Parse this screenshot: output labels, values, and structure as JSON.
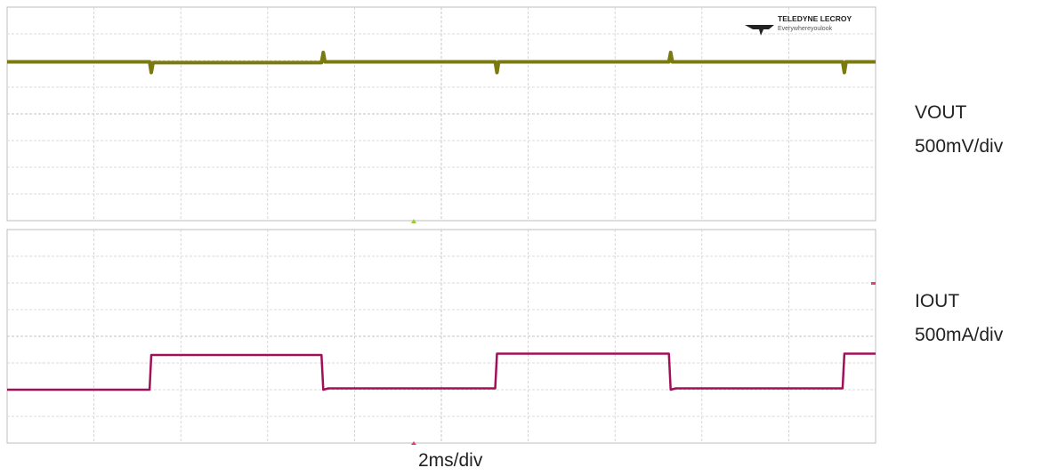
{
  "chart_data": [
    {
      "type": "line",
      "title": "",
      "series": [
        {
          "name": "VOUT",
          "color": "#7a7a10",
          "x_div": [
            0,
            1.64,
            1.66,
            1.68,
            3.62,
            3.64,
            3.66,
            3.7,
            5.62,
            5.64,
            5.66,
            5.68,
            7.62,
            7.64,
            7.66,
            7.7,
            9.62,
            9.64,
            9.66,
            10.0
          ],
          "y_div": [
            5.95,
            5.95,
            5.55,
            5.92,
            5.92,
            6.3,
            5.95,
            5.95,
            5.95,
            5.55,
            5.95,
            5.95,
            5.95,
            6.3,
            5.95,
            5.95,
            5.95,
            5.55,
            5.95,
            5.95
          ]
        }
      ],
      "scale_label": "VOUT",
      "scale_value": "500mV/div",
      "divisions": {
        "x": 10,
        "y": 8
      }
    },
    {
      "type": "line",
      "title": "",
      "series": [
        {
          "name": "IOUT",
          "color": "#a0105a",
          "x_div": [
            0,
            1.64,
            1.66,
            3.62,
            3.64,
            3.7,
            5.62,
            5.64,
            7.62,
            7.64,
            7.7,
            9.62,
            9.64,
            10.0
          ],
          "y_div": [
            2.0,
            2.0,
            3.3,
            3.3,
            2.0,
            2.05,
            2.05,
            3.35,
            3.35,
            2.0,
            2.05,
            2.05,
            3.35,
            3.35
          ]
        }
      ],
      "scale_label": "IOUT",
      "scale_value": "500mA/div",
      "divisions": {
        "x": 10,
        "y": 8
      }
    }
  ],
  "timebase": "2ms/div",
  "logo": {
    "brand": "TELEDYNE LECROY",
    "tagline": "Everywhereyoulook"
  },
  "colors": {
    "grid": "#cfcfcf",
    "vout": "#7a7a10",
    "iout": "#a0105a"
  }
}
